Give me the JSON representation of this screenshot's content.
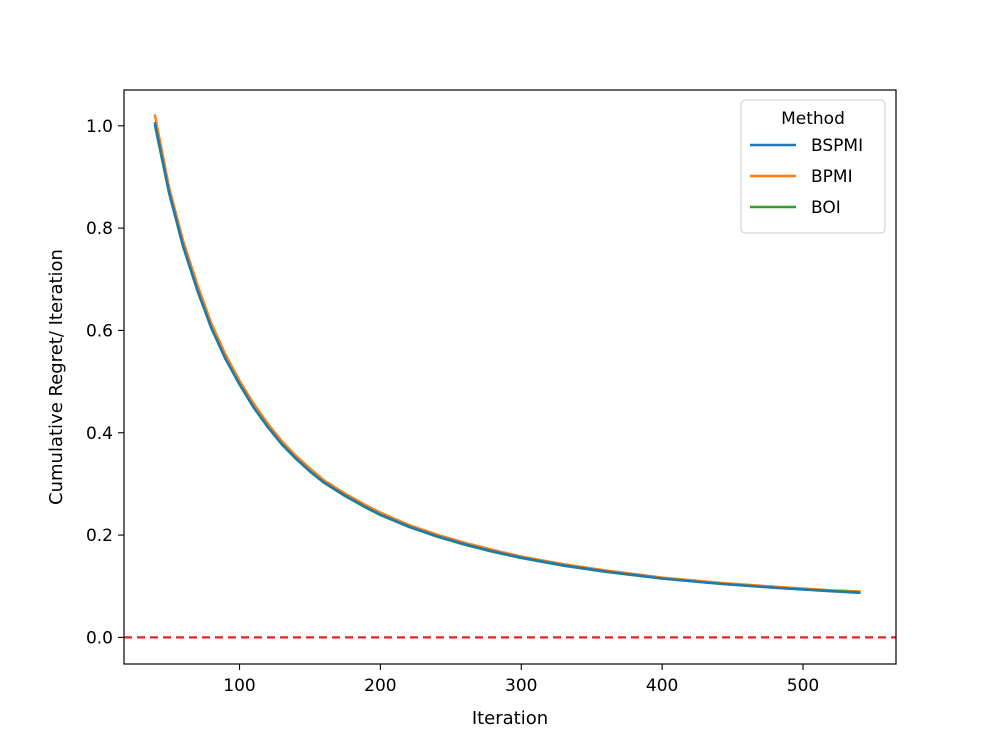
{
  "chart_data": {
    "type": "line",
    "title": "",
    "xlabel": "Iteration",
    "ylabel": "Cumulative Regret/ Iteration",
    "xlim": [
      18,
      566
    ],
    "ylim": [
      -0.052,
      1.07
    ],
    "xticks": [
      100,
      200,
      300,
      400,
      500
    ],
    "yticks": [
      0.0,
      0.2,
      0.4,
      0.6,
      0.8,
      1.0
    ],
    "ytick_labels": [
      "0.0",
      "0.2",
      "0.4",
      "0.6",
      "0.8",
      "1.0"
    ],
    "grid": false,
    "legend": {
      "title": "Method",
      "placement": "upper-right"
    },
    "reference_line": {
      "y": 0.0,
      "color": "#e8221d",
      "style": "dashed"
    },
    "series": [
      {
        "name": "BSPMI",
        "color": "#1f77b4",
        "x": [
          40,
          50,
          60,
          70,
          80,
          90,
          100,
          110,
          120,
          130,
          140,
          150,
          160,
          175,
          190,
          200,
          220,
          240,
          260,
          280,
          300,
          330,
          360,
          400,
          440,
          480,
          520,
          540
        ],
        "y": [
          1.005,
          0.87,
          0.765,
          0.68,
          0.605,
          0.545,
          0.495,
          0.45,
          0.412,
          0.378,
          0.35,
          0.325,
          0.303,
          0.277,
          0.254,
          0.24,
          0.217,
          0.198,
          0.182,
          0.168,
          0.156,
          0.141,
          0.129,
          0.115,
          0.105,
          0.097,
          0.09,
          0.087
        ]
      },
      {
        "name": "BPMI",
        "color": "#ff7f0e",
        "x": [
          40,
          50,
          60,
          70,
          80,
          90,
          100,
          110,
          120,
          130,
          140,
          150,
          160,
          175,
          190,
          200,
          220,
          240,
          260,
          280,
          300,
          330,
          360,
          400,
          440,
          480,
          520,
          540
        ],
        "y": [
          1.02,
          0.88,
          0.775,
          0.69,
          0.614,
          0.553,
          0.502,
          0.457,
          0.418,
          0.384,
          0.355,
          0.33,
          0.307,
          0.281,
          0.258,
          0.244,
          0.22,
          0.201,
          0.185,
          0.171,
          0.158,
          0.143,
          0.131,
          0.117,
          0.107,
          0.099,
          0.092,
          0.09
        ]
      },
      {
        "name": "BOI",
        "color": "#2ca02c",
        "x": [
          40,
          50,
          60,
          70,
          80,
          90,
          100,
          110,
          120,
          130,
          140,
          150,
          160,
          175,
          190,
          200,
          220,
          240,
          260,
          280,
          300,
          330,
          360,
          400,
          440,
          480,
          520,
          540
        ],
        "y": [
          1.0,
          0.868,
          0.763,
          0.678,
          0.604,
          0.544,
          0.494,
          0.449,
          0.411,
          0.377,
          0.349,
          0.324,
          0.302,
          0.276,
          0.253,
          0.239,
          0.216,
          0.197,
          0.181,
          0.167,
          0.155,
          0.14,
          0.128,
          0.115,
          0.105,
          0.097,
          0.091,
          0.088
        ]
      }
    ]
  }
}
